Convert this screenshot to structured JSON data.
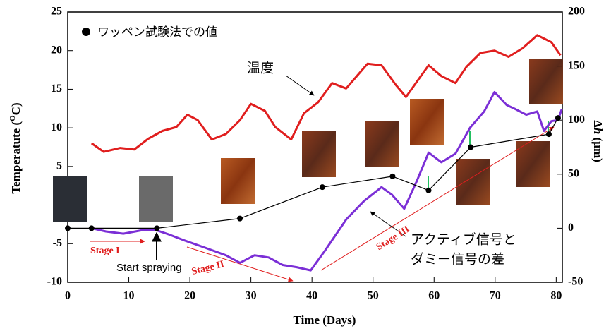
{
  "chart_data": {
    "type": "line",
    "xlabel": "Time (Days)",
    "ylabel": [
      "Temperatute (",
      "O",
      "C)"
    ],
    "y2label": [
      "Δ",
      "h",
      " (μm)"
    ],
    "xlim": [
      0,
      81
    ],
    "xticks": [
      0,
      10,
      20,
      30,
      40,
      50,
      60,
      70,
      80
    ],
    "ylim": [
      -10,
      25
    ],
    "yticks": [
      -10,
      -5,
      5,
      10,
      15,
      20,
      25
    ],
    "y2lim": [
      -50,
      200
    ],
    "y2ticks": [
      -50,
      0,
      50,
      100,
      150,
      200
    ],
    "series": [
      {
        "color": "#e01e1e",
        "axis": "y",
        "x": [
          3.9,
          5.9,
          8.6,
          10.9,
          13.2,
          15.5,
          17.8,
          19.6,
          21.3,
          23.6,
          25.9,
          28.2,
          30.0,
          32.3,
          34.0,
          36.6,
          38.7,
          41.0,
          43.3,
          45.6,
          49.1,
          51.4,
          53.7,
          55.4,
          57.2,
          59.1,
          61.2,
          63.5,
          65.3,
          67.6,
          69.9,
          72.2,
          74.5,
          76.9,
          79.2,
          80.7
        ],
        "values": [
          8.0,
          6.9,
          7.4,
          7.2,
          8.6,
          9.6,
          10.1,
          11.7,
          11.0,
          8.5,
          9.2,
          11.0,
          13.1,
          12.2,
          10.1,
          8.5,
          11.9,
          13.3,
          15.8,
          15.1,
          18.3,
          18.1,
          15.6,
          14.0,
          16.0,
          18.1,
          16.7,
          15.8,
          17.9,
          19.7,
          20.0,
          19.2,
          20.3,
          22.0,
          21.1,
          19.4
        ]
      },
      {
        "color": "#7b2fd6",
        "axis": "y2",
        "x": [
          3.9,
          6.25,
          9.1,
          12.0,
          14.6,
          16.7,
          19.0,
          22.5,
          25.9,
          28.2,
          30.6,
          32.9,
          35.2,
          37.5,
          39.8,
          42.1,
          45.6,
          48.5,
          51.4,
          53.1,
          55.1,
          57.2,
          59.1,
          61.2,
          63.5,
          65.9,
          68.2,
          69.9,
          71.9,
          73.4,
          75.1,
          76.9,
          78.0,
          79.2,
          80.3,
          80.9
        ],
        "values": [
          0,
          -3,
          -5,
          -2,
          -2,
          -6,
          -11,
          -18,
          -25,
          -32,
          -25,
          -27,
          -34,
          -36,
          -39,
          -21,
          8,
          25,
          38,
          31,
          18,
          44,
          70,
          61,
          69,
          93,
          108,
          126,
          114,
          110,
          105,
          108,
          90,
          99,
          100,
          110
        ]
      },
      {
        "name": "ワッペン試験法での値",
        "color": "#000000",
        "axis": "y2",
        "markers": true,
        "x": [
          0,
          3.9,
          14.6,
          28.2,
          41.7,
          53.2,
          59.1,
          66.0,
          78.8,
          80.3
        ],
        "values": [
          0,
          0,
          0,
          9,
          38,
          48,
          35,
          75,
          87,
          102
        ]
      }
    ],
    "annotations": [
      "温度",
      "アクティブ信号と",
      "ダミー信号の差",
      "Stage I",
      "Stage II",
      "Stage III",
      "Start spraying"
    ]
  }
}
